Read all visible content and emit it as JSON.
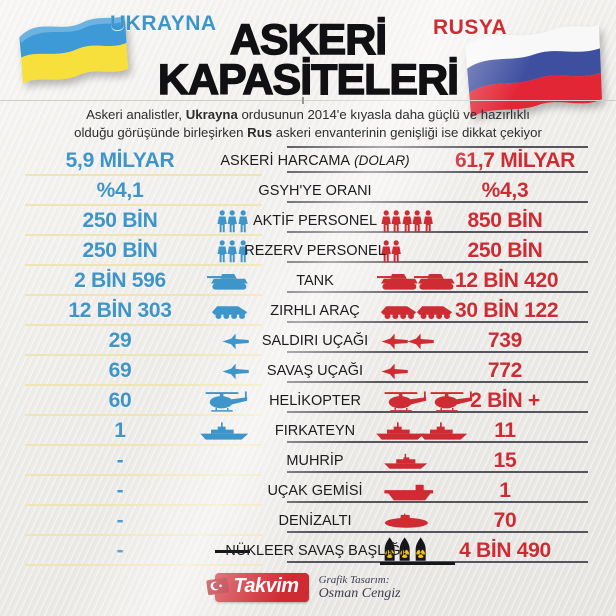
{
  "header": {
    "left_country": "UKRAYNA",
    "right_country": "RUSYA",
    "title_line1": "ASKERİ",
    "title_line2": "KAPASİTELERİ",
    "subtitle": {
      "line1_pre": "Askeri analistler, ",
      "line1_bold": "Ukrayna",
      "line1_post": " ordusunun 2014'e kıyasla daha güçlü ve hazırlıklı",
      "line2_pre": "olduğu görüşünde birleşirken ",
      "line2_bold": "Rus",
      "line2_post": " askeri envanterinin genişliği ise dikkat çekiyor"
    }
  },
  "colors": {
    "ukraine_blue": "#3E95C9",
    "russia_red": "#CE2B33",
    "flag_ua_blue": "#3D9AD6",
    "flag_ua_yellow": "#F7E03C",
    "flag_ru_white": "#F8F8F8",
    "flag_ru_blue": "#3F4FA0",
    "flag_ru_red": "#E32636",
    "line_yellow": "#EFE5B2",
    "line_dark": "#55555E",
    "warhead_yellow": "#F2C40F"
  },
  "rows": [
    {
      "label": "ASKERİ HARCAMA",
      "label_note": "(DOLAR)",
      "left": "5,9 MİLYAR",
      "right": "61,7 MİLYAR",
      "icon": null,
      "left_count": 0,
      "right_count": 0
    },
    {
      "label": "GSYH'YE ORANI",
      "label_note": "",
      "left": "%4,1",
      "right": "%4,3",
      "icon": null,
      "left_count": 0,
      "right_count": 0
    },
    {
      "label": "AKTİF PERSONEL",
      "label_note": "",
      "left": "250 BİN",
      "right": "850 BİN",
      "icon": "soldier",
      "left_count": 3,
      "right_count": 5
    },
    {
      "label": "REZERV PERSONEL",
      "label_note": "",
      "left": "250 BİN",
      "right": "250 BİN",
      "icon": "soldier",
      "left_count": 3,
      "right_count": 2
    },
    {
      "label": "TANK",
      "label_note": "",
      "left": "2 BİN 596",
      "right": "12 BİN 420",
      "icon": "tank",
      "left_count": 1,
      "right_count": 2
    },
    {
      "label": "ZIRHLI ARAÇ",
      "label_note": "",
      "left": "12 BİN 303",
      "right": "30 BİN 122",
      "icon": "apc",
      "left_count": 1,
      "right_count": 2
    },
    {
      "label": "SALDIRI UÇAĞI",
      "label_note": "",
      "left": "29",
      "right": "739",
      "icon": "jet",
      "left_count": 1,
      "right_count": 2
    },
    {
      "label": "SAVAŞ UÇAĞI",
      "label_note": "",
      "left": "69",
      "right": "772",
      "icon": "jet",
      "left_count": 1,
      "right_count": 1
    },
    {
      "label": "HELİKOPTER",
      "label_note": "",
      "left": "60",
      "right": "2 BİN +",
      "icon": "helicopter",
      "left_count": 1,
      "right_count": 2
    },
    {
      "label": "FIRKATEYN",
      "label_note": "",
      "left": "1",
      "right": "11",
      "icon": "frigate",
      "left_count": 1,
      "right_count": 2
    },
    {
      "label": "MUHRİP",
      "label_note": "",
      "left": "-",
      "right": "15",
      "icon": "destroyer",
      "left_count": 0,
      "right_count": 1
    },
    {
      "label": "UÇAK GEMİSİ",
      "label_note": "",
      "left": "-",
      "right": "1",
      "icon": "carrier",
      "left_count": 0,
      "right_count": 1
    },
    {
      "label": "DENİZALTI",
      "label_note": "",
      "left": "-",
      "right": "70",
      "icon": "submarine",
      "left_count": 0,
      "right_count": 1
    },
    {
      "label": "NÜKLEER SAVAŞ BAŞLIĞI",
      "label_note": "",
      "left": "-",
      "right": "4 BİN 490",
      "icon": "warhead",
      "left_count": 0,
      "right_count": 3
    }
  ],
  "chart_data": {
    "type": "table",
    "title": "ASKERİ KAPASİTELERİ",
    "categories": [
      "ASKERİ HARCAMA (DOLAR)",
      "GSYH'YE ORANI",
      "AKTİF PERSONEL",
      "REZERV PERSONEL",
      "TANK",
      "ZIRHLI ARAÇ",
      "SALDIRI UÇAĞI",
      "SAVAŞ UÇAĞI",
      "HELİKOPTER",
      "FIRKATEYN",
      "MUHRİP",
      "UÇAK GEMİSİ",
      "DENİZALTI",
      "NÜKLEER SAVAŞ BAŞLIĞI"
    ],
    "series": [
      {
        "name": "UKRAYNA",
        "values": [
          "5,9 MİLYAR",
          "%4,1",
          "250 BİN",
          "250 BİN",
          "2 BİN 596",
          "12 BİN 303",
          "29",
          "69",
          "60",
          "1",
          "-",
          "-",
          "-",
          "-"
        ]
      },
      {
        "name": "RUSYA",
        "values": [
          "61,7 MİLYAR",
          "%4,3",
          "850 BİN",
          "250 BİN",
          "12 BİN 420",
          "30 BİN 122",
          "739",
          "772",
          "2 BİN +",
          "11",
          "15",
          "1",
          "70",
          "4 BİN 490"
        ]
      }
    ],
    "legend_position": "top",
    "grid": false
  },
  "footer": {
    "logo_text": "Takvim",
    "credit_label": "Grafik Tasarım:",
    "credit_name": "Osman Cengiz"
  }
}
